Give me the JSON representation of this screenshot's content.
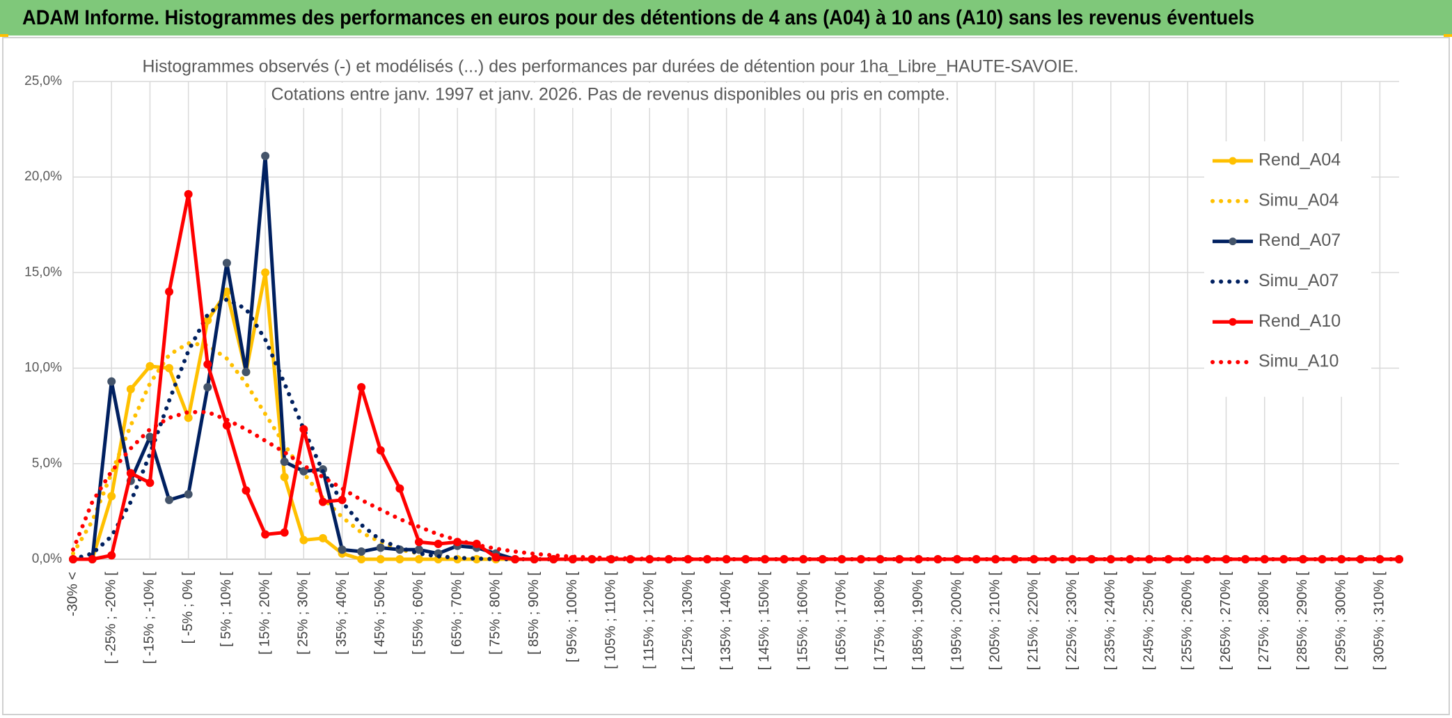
{
  "chart_data": {
    "type": "line",
    "title": "ADAM Informe. Histogrammes des performances en euros pour des détentions de 4 ans (A04) à 10 ans (A10) sans les revenus éventuels",
    "subtitle": [
      "Histogrammes observés (-) et modélisés (...) des performances par durées de détention pour 1ha_Libre_HAUTE-SAVOIE.",
      "Cotations entre janv. 1997 et janv. 2026. Pas de revenus disponibles ou pris en compte."
    ],
    "categories": [
      "-30% <",
      null,
      "[ -25% ; -20% [",
      null,
      "[ -15% ; -10% [",
      null,
      "[ -5% ; 0% [",
      null,
      "[ 5% ; 10% [",
      null,
      "[ 15% ; 20% [",
      null,
      "[ 25% ; 30% [",
      null,
      "[ 35% ; 40% [",
      null,
      "[ 45% ; 50% [",
      null,
      "[ 55% ; 60% [",
      null,
      "[ 65% ; 70% [",
      null,
      "[ 75% ; 80% [",
      null,
      "[ 85% ; 90% [",
      null,
      "[ 95% ; 100% [",
      null,
      "[ 105% ; 110% [",
      null,
      "[ 115% ; 120% [",
      null,
      "[ 125% ; 130% [",
      null,
      "[ 135% ; 140% [",
      null,
      "[ 145% ; 150% [",
      null,
      "[ 155% ; 160% [",
      null,
      "[ 165% ; 170% [",
      null,
      "[ 175% ; 180% [",
      null,
      "[ 185% ; 190% [",
      null,
      "[ 195% ; 200% [",
      null,
      "[ 205% ; 210% [",
      null,
      "[ 215% ; 220% [",
      null,
      "[ 225% ; 230% [",
      null,
      "[ 235% ; 240% [",
      null,
      "[ 245% ; 250% [",
      null,
      "[ 255% ; 260% [",
      null,
      "[ 265% ; 270% [",
      null,
      "[ 275% ; 280% [",
      null,
      "[ 285% ; 290% [",
      null,
      "[ 295% ; 300% [",
      null,
      "[ 305% ; 310% [",
      null
    ],
    "series": [
      {
        "name": "Rend_A04",
        "color": "#ffc000",
        "marker_color": "#ffc000",
        "dash": "solid",
        "marker": true,
        "values": [
          0,
          0,
          3.3,
          8.9,
          10.1,
          10.0,
          7.4,
          12.5,
          14.0,
          9.8,
          15.0,
          4.3,
          1.0,
          1.1,
          0.3,
          0,
          0,
          0,
          0,
          0,
          0,
          0,
          0,
          0,
          0,
          0,
          0,
          0,
          0,
          0,
          0,
          0,
          0,
          0,
          0,
          0,
          0,
          0,
          0,
          0,
          0,
          0,
          0,
          0,
          0,
          0,
          0,
          0,
          0,
          0,
          0,
          0,
          0,
          0,
          0,
          0,
          0,
          0,
          0,
          0,
          0,
          0,
          0,
          0,
          0,
          0,
          0,
          0,
          0,
          0
        ]
      },
      {
        "name": "Simu_A04",
        "color": "#ffc000",
        "dash": "dot",
        "marker": false,
        "values": [
          0.3,
          2.0,
          4.5,
          7.0,
          9.2,
          10.7,
          11.3,
          11.2,
          10.5,
          9.2,
          7.6,
          6.0,
          4.5,
          3.2,
          2.2,
          1.4,
          0.9,
          0.5,
          0.3,
          0.15,
          0.08,
          0.04,
          0.02,
          0,
          0,
          0,
          0,
          0,
          0,
          0,
          0,
          0,
          0,
          0,
          0,
          0,
          0,
          0,
          0,
          0,
          0,
          0,
          0,
          0,
          0,
          0,
          0,
          0,
          0,
          0,
          0,
          0,
          0,
          0,
          0,
          0,
          0,
          0,
          0,
          0,
          0,
          0,
          0,
          0,
          0,
          0,
          0,
          0,
          0,
          0
        ]
      },
      {
        "name": "Rend_A07",
        "color": "#002060",
        "marker_color": "#44546a",
        "dash": "solid",
        "marker": true,
        "values": [
          0,
          0,
          9.3,
          4.1,
          6.4,
          3.1,
          3.4,
          9.0,
          15.5,
          9.8,
          21.1,
          5.1,
          4.6,
          4.7,
          0.5,
          0.4,
          0.6,
          0.5,
          0.5,
          0.3,
          0.7,
          0.6,
          0.3,
          0,
          0,
          0,
          0,
          0,
          0,
          0,
          0,
          0,
          0,
          0,
          0,
          0,
          0,
          0,
          0,
          0,
          0,
          0,
          0,
          0,
          0,
          0,
          0,
          0,
          0,
          0,
          0,
          0,
          0,
          0,
          0,
          0,
          0,
          0,
          0,
          0,
          0,
          0,
          0,
          0,
          0,
          0,
          0,
          0,
          0,
          0
        ]
      },
      {
        "name": "Simu_A07",
        "color": "#002060",
        "dash": "dot",
        "marker": false,
        "values": [
          0,
          0.3,
          1.2,
          3.0,
          5.5,
          8.3,
          10.9,
          12.8,
          13.6,
          13.1,
          11.5,
          9.2,
          6.8,
          4.6,
          3.0,
          1.8,
          1.0,
          0.6,
          0.3,
          0.15,
          0.07,
          0.03,
          0,
          0,
          0,
          0,
          0,
          0,
          0,
          0,
          0,
          0,
          0,
          0,
          0,
          0,
          0,
          0,
          0,
          0,
          0,
          0,
          0,
          0,
          0,
          0,
          0,
          0,
          0,
          0,
          0,
          0,
          0,
          0,
          0,
          0,
          0,
          0,
          0,
          0,
          0,
          0,
          0,
          0,
          0,
          0,
          0,
          0,
          0,
          0
        ]
      },
      {
        "name": "Rend_A10",
        "color": "#ff0000",
        "marker_color": "#ff0000",
        "dash": "solid",
        "marker": true,
        "values": [
          0,
          0,
          0.2,
          4.5,
          4.0,
          14.0,
          19.1,
          10.2,
          7.0,
          3.6,
          1.3,
          1.4,
          6.8,
          3.0,
          3.1,
          9.0,
          5.7,
          3.7,
          0.9,
          0.8,
          0.9,
          0.8,
          0.1,
          0,
          0,
          0,
          0,
          0,
          0,
          0,
          0,
          0,
          0,
          0,
          0,
          0,
          0,
          0,
          0,
          0,
          0,
          0,
          0,
          0,
          0,
          0,
          0,
          0,
          0,
          0,
          0,
          0,
          0,
          0,
          0,
          0,
          0,
          0,
          0,
          0,
          0,
          0,
          0,
          0,
          0,
          0,
          0,
          0,
          0,
          0
        ]
      },
      {
        "name": "Simu_A10",
        "color": "#ff0000",
        "dash": "dot",
        "marker": false,
        "values": [
          0.5,
          3.0,
          4.6,
          5.8,
          6.8,
          7.4,
          7.7,
          7.7,
          7.3,
          6.8,
          6.2,
          5.6,
          4.9,
          4.3,
          3.7,
          3.1,
          2.6,
          2.1,
          1.7,
          1.3,
          1.0,
          0.75,
          0.55,
          0.4,
          0.28,
          0.2,
          0.13,
          0.09,
          0.06,
          0.04,
          0.02,
          0,
          0,
          0,
          0,
          0,
          0,
          0,
          0,
          0,
          0,
          0,
          0,
          0,
          0,
          0,
          0,
          0,
          0,
          0,
          0,
          0,
          0,
          0,
          0,
          0,
          0,
          0,
          0,
          0,
          0,
          0,
          0,
          0,
          0,
          0,
          0,
          0,
          0,
          0
        ]
      }
    ],
    "ylim": [
      0,
      25
    ],
    "yticks": [
      {
        "value": 0,
        "label": "0,0%"
      },
      {
        "value": 5,
        "label": "5,0%"
      },
      {
        "value": 10,
        "label": "10,0%"
      },
      {
        "value": 15,
        "label": "15,0%"
      },
      {
        "value": 20,
        "label": "20,0%"
      },
      {
        "value": 25,
        "label": "25,0%"
      }
    ],
    "grid": true,
    "legend": "right"
  }
}
